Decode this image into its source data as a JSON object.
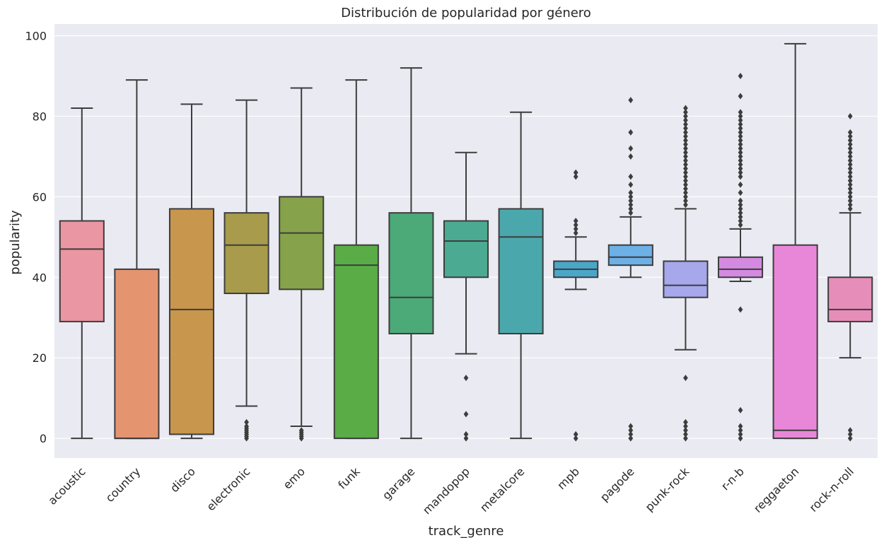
{
  "chart_data": {
    "type": "boxplot",
    "title": "Distribución de popularidad por género",
    "xlabel": "track_genre",
    "ylabel": "popularity",
    "ylim": [
      -4.9,
      102.9
    ],
    "yticks": [
      0,
      20,
      40,
      60,
      80,
      100
    ],
    "grid": true,
    "legend": "none",
    "categories": [
      "acoustic",
      "country",
      "disco",
      "electronic",
      "emo",
      "funk",
      "garage",
      "mandopop",
      "metalcore",
      "mpb",
      "pagode",
      "punk-rock",
      "r-n-b",
      "reggaeton",
      "rock-n-roll"
    ],
    "boxes": [
      {
        "category": "acoustic",
        "whisker_low": 0,
        "q1": 29,
        "median": 47,
        "q3": 54,
        "whisker_high": 82,
        "outliers": [],
        "color": "#ea96a3"
      },
      {
        "category": "country",
        "whisker_low": 0,
        "q1": 0,
        "median": 0,
        "q3": 42,
        "whisker_high": 89,
        "outliers": [],
        "color": "#e59470"
      },
      {
        "category": "disco",
        "whisker_low": 0,
        "q1": 1,
        "median": 32,
        "q3": 57,
        "whisker_high": 83,
        "outliers": [],
        "color": "#c8964c"
      },
      {
        "category": "electronic",
        "whisker_low": 8,
        "q1": 36,
        "median": 48,
        "q3": 56,
        "whisker_high": 84,
        "outliers": [
          0,
          0.5,
          1,
          1.5,
          2,
          2.5,
          3,
          4
        ],
        "color": "#a89b4b"
      },
      {
        "category": "emo",
        "whisker_low": 3,
        "q1": 37,
        "median": 51,
        "q3": 60,
        "whisker_high": 87,
        "outliers": [
          0,
          0.5,
          1,
          1.5,
          2
        ],
        "color": "#86a24b"
      },
      {
        "category": "funk",
        "whisker_low": 0,
        "q1": 0,
        "median": 43,
        "q3": 48,
        "whisker_high": 89,
        "outliers": [],
        "color": "#5aac47"
      },
      {
        "category": "garage",
        "whisker_low": 0,
        "q1": 26,
        "median": 35,
        "q3": 56,
        "whisker_high": 92,
        "outliers": [],
        "color": "#4baa78"
      },
      {
        "category": "mandopop",
        "whisker_low": 21,
        "q1": 40,
        "median": 49,
        "q3": 54,
        "whisker_high": 71,
        "outliers": [
          0,
          1,
          6,
          15
        ],
        "color": "#4baa92"
      },
      {
        "category": "metalcore",
        "whisker_low": 0,
        "q1": 26,
        "median": 50,
        "q3": 57,
        "whisker_high": 81,
        "outliers": [],
        "color": "#4aa8ac"
      },
      {
        "category": "mpb",
        "whisker_low": 37,
        "q1": 40,
        "median": 42,
        "q3": 44,
        "whisker_high": 50,
        "outliers": [
          0,
          1,
          51,
          52,
          53,
          54,
          65,
          66
        ],
        "color": "#4aa7c8"
      },
      {
        "category": "pagode",
        "whisker_low": 40,
        "q1": 43,
        "median": 45,
        "q3": 48,
        "whisker_high": 55,
        "outliers": [
          0,
          1,
          2,
          3,
          56,
          57,
          58,
          59,
          60,
          61,
          63,
          65,
          70,
          72,
          76,
          84
        ],
        "color": "#6cb0e6"
      },
      {
        "category": "punk-rock",
        "whisker_low": 22,
        "q1": 35,
        "median": 38,
        "q3": 44,
        "whisker_high": 57,
        "outliers": [
          0,
          1,
          2,
          3,
          4,
          15,
          58,
          59,
          60,
          61,
          62,
          63,
          64,
          65,
          66,
          67,
          68,
          69,
          70,
          71,
          72,
          73,
          74,
          75,
          76,
          77,
          78,
          79,
          80,
          81,
          82
        ],
        "color": "#a7a7ec"
      },
      {
        "category": "r-n-b",
        "whisker_low": 39,
        "q1": 40,
        "median": 42,
        "q3": 45,
        "whisker_high": 52,
        "outliers": [
          0,
          1,
          2,
          3,
          7,
          32,
          53,
          54,
          55,
          56,
          57,
          58,
          59,
          61,
          63,
          65,
          66,
          67,
          68,
          69,
          70,
          71,
          72,
          73,
          74,
          75,
          76,
          77,
          78,
          79,
          80,
          81,
          85,
          90
        ],
        "color": "#d48ae0"
      },
      {
        "category": "reggaeton",
        "whisker_low": 0,
        "q1": 0,
        "median": 2,
        "q3": 48,
        "whisker_high": 98,
        "outliers": [],
        "color": "#e887d8"
      },
      {
        "category": "rock-n-roll",
        "whisker_low": 20,
        "q1": 29,
        "median": 32,
        "q3": 40,
        "whisker_high": 56,
        "outliers": [
          0,
          1,
          2,
          57,
          58,
          59,
          60,
          61,
          62,
          63,
          64,
          65,
          66,
          67,
          68,
          69,
          70,
          71,
          72,
          73,
          74,
          75,
          76,
          80
        ],
        "color": "#e68eb9"
      }
    ],
    "colors": {
      "background": "#eaeaf2",
      "grid": "#ffffff",
      "line": "#3d3d3d",
      "text": "#262626"
    }
  }
}
